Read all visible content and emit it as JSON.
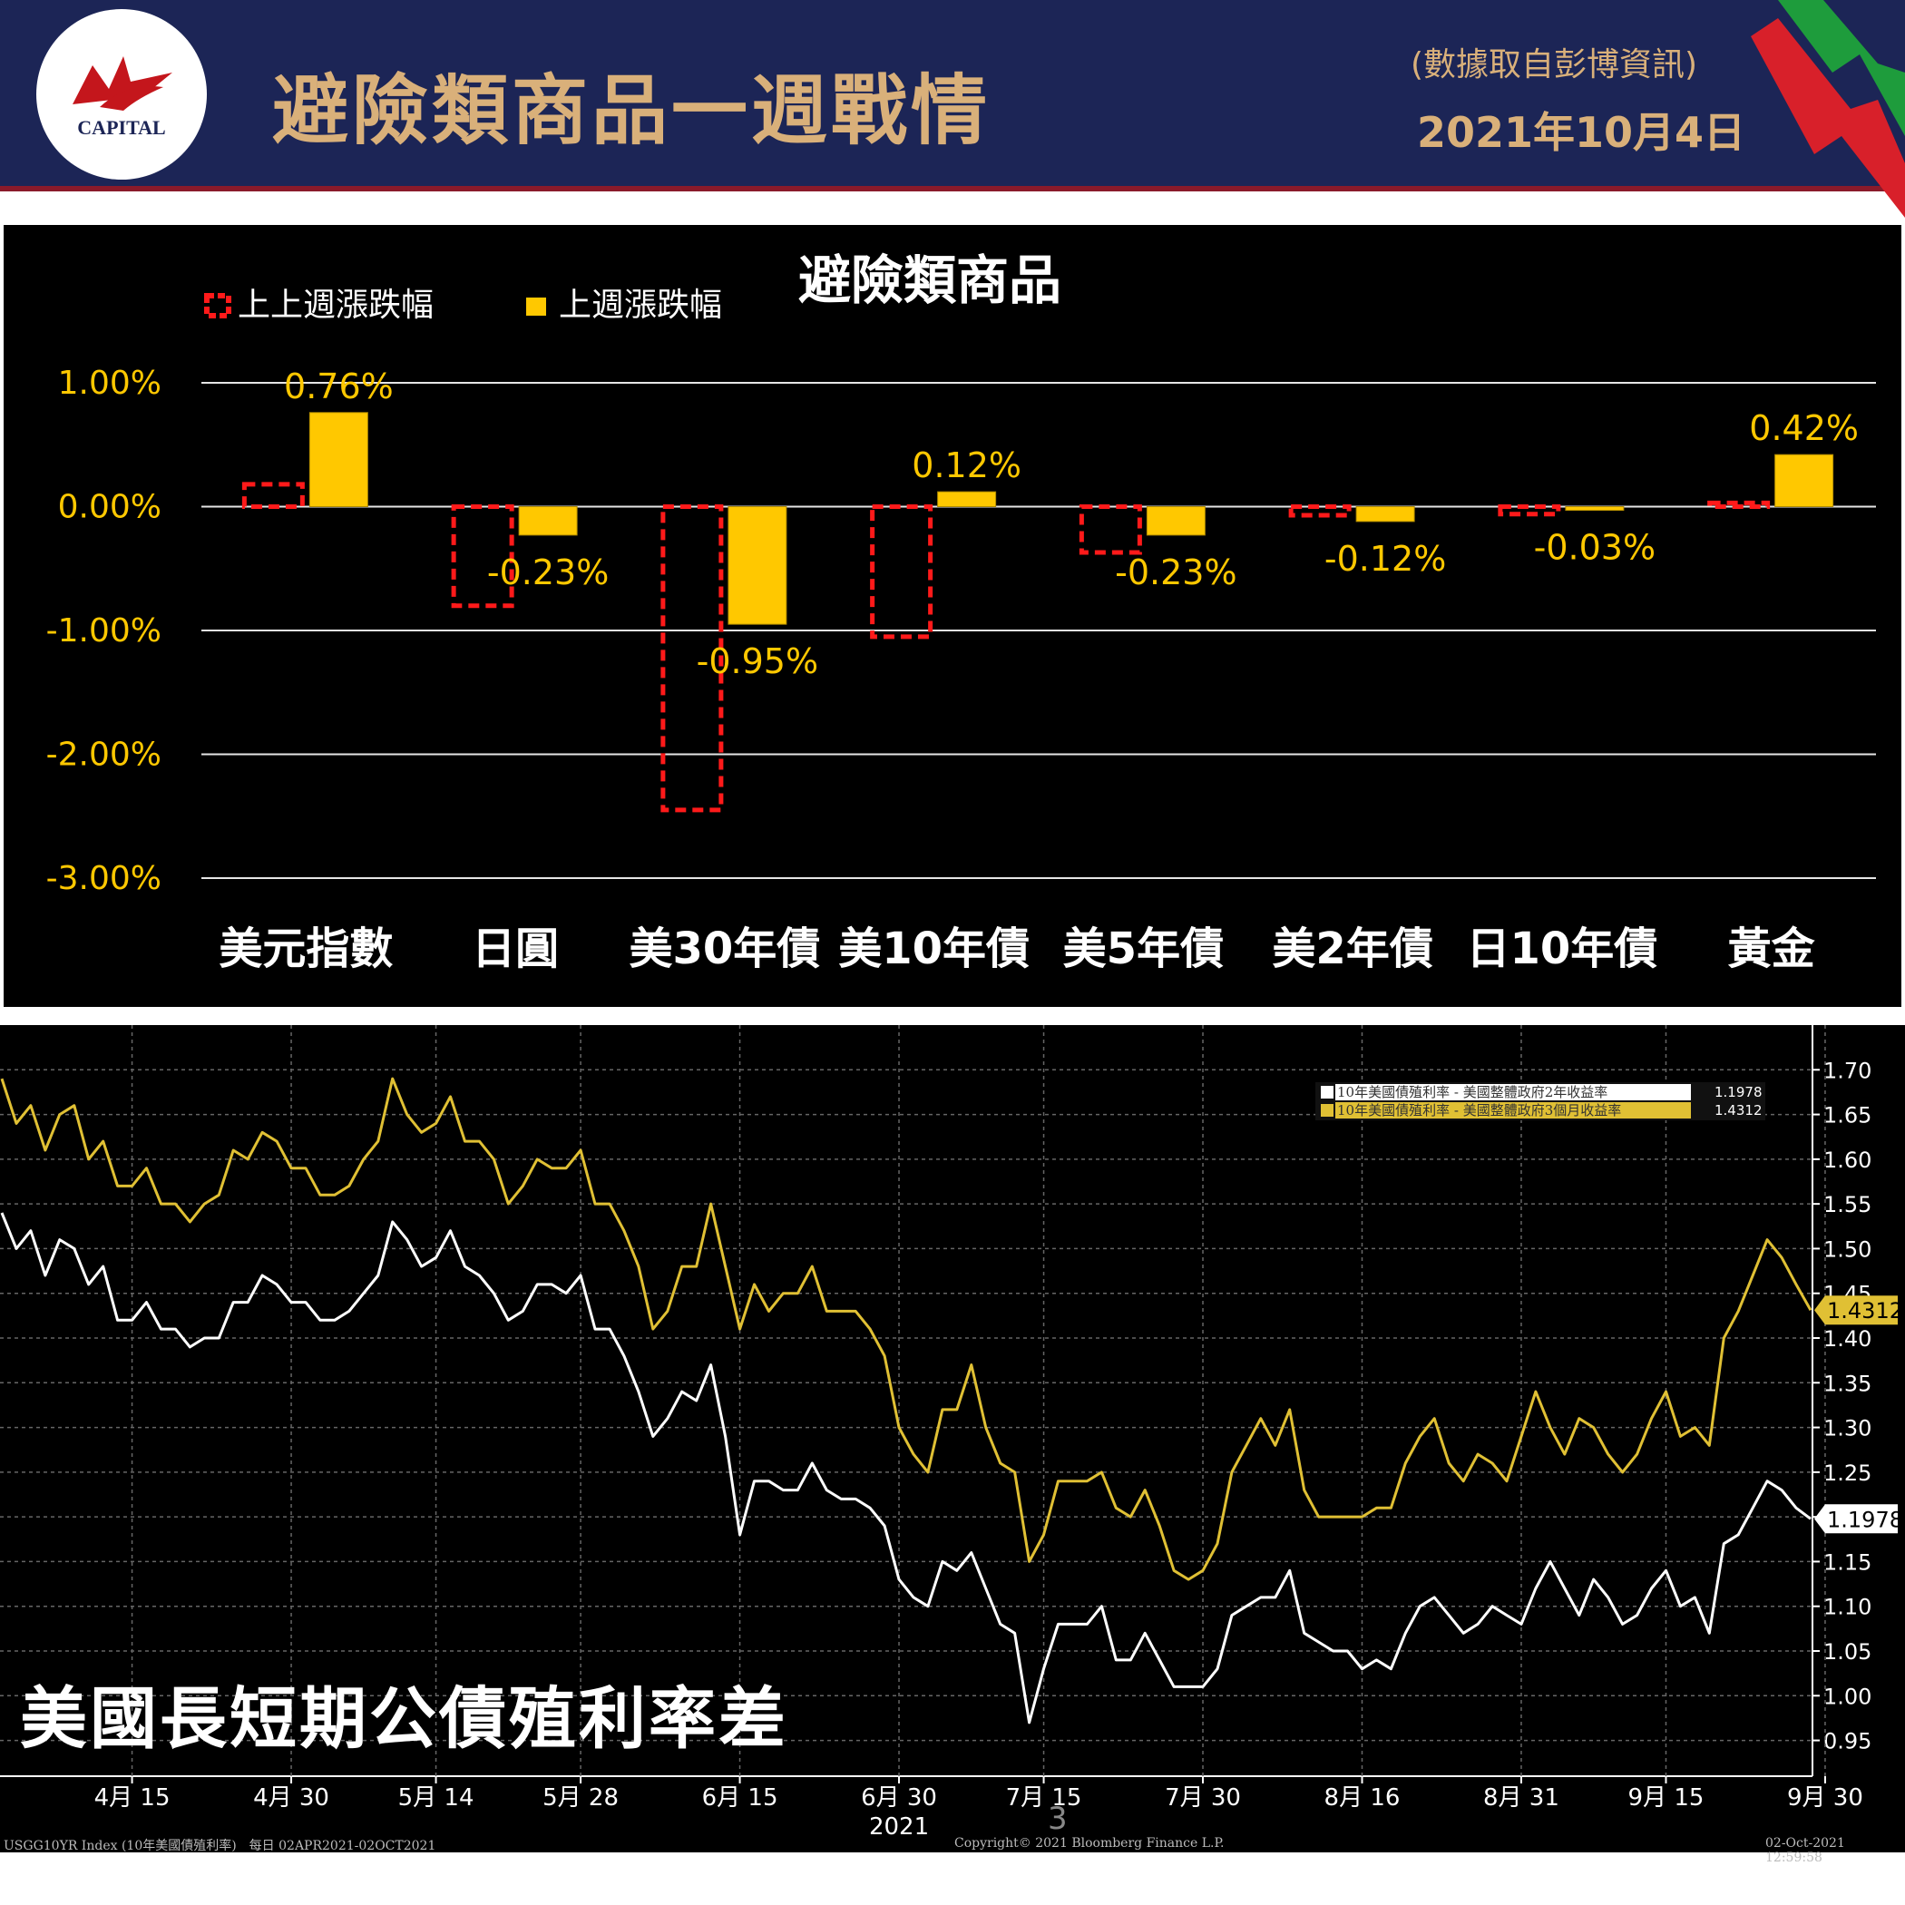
{
  "header": {
    "logo_text": "CAPITAL",
    "title": "避險類商品一週戰情",
    "source": "(數據取自彭博資訊)",
    "date": "2021年10月4日"
  },
  "colors": {
    "header_bg": "#1c2556",
    "accent_gold": "#d9b07a",
    "bar_yellow": "#ffc800",
    "prev_week_red": "#ff1a1a",
    "line_white": "#ffffff",
    "line_yellow": "#e0c034"
  },
  "chart_data": [
    {
      "type": "bar",
      "title": "避險類商品",
      "categories": [
        "美元指數",
        "日圓",
        "美30年債",
        "美10年債",
        "美5年債",
        "美2年債",
        "日10年債",
        "黃金"
      ],
      "series": [
        {
          "name": "上上週漲跌幅",
          "style": "dashed-outline",
          "values": [
            0.18,
            -0.8,
            -2.45,
            -1.05,
            -0.37,
            -0.07,
            -0.06,
            0.03
          ]
        },
        {
          "name": "上週漲跌幅",
          "style": "solid",
          "values": [
            0.76,
            -0.23,
            -0.95,
            0.12,
            -0.23,
            -0.12,
            -0.03,
            0.42
          ]
        }
      ],
      "data_labels": [
        "0.76%",
        "-0.23%",
        "-0.95%",
        "0.12%",
        "-0.23%",
        "-0.12%",
        "-0.03%",
        "0.42%"
      ],
      "y_ticks": [
        1.0,
        0.0,
        -1.0,
        -2.0,
        -3.0
      ],
      "y_tick_labels": [
        "1.00%",
        "0.00%",
        "-1.00%",
        "-2.00%",
        "-3.00%"
      ],
      "ylim": [
        -3.0,
        1.0
      ],
      "legend_position": "top-left",
      "grid": true
    },
    {
      "type": "line",
      "title": "美國長短期公債殖利率差",
      "series": [
        {
          "name": "10年美國債殖利率 - 美國整體政府2年收益率",
          "last_value": "1.1978",
          "color": "white",
          "values": [
            1.54,
            1.5,
            1.52,
            1.47,
            1.51,
            1.5,
            1.46,
            1.48,
            1.42,
            1.42,
            1.44,
            1.41,
            1.41,
            1.39,
            1.4,
            1.4,
            1.44,
            1.44,
            1.47,
            1.46,
            1.44,
            1.44,
            1.42,
            1.42,
            1.43,
            1.45,
            1.47,
            1.53,
            1.51,
            1.48,
            1.49,
            1.52,
            1.48,
            1.47,
            1.45,
            1.42,
            1.43,
            1.46,
            1.46,
            1.45,
            1.47,
            1.41,
            1.41,
            1.38,
            1.34,
            1.29,
            1.31,
            1.34,
            1.33,
            1.37,
            1.29,
            1.18,
            1.24,
            1.24,
            1.23,
            1.23,
            1.26,
            1.23,
            1.22,
            1.22,
            1.21,
            1.19,
            1.13,
            1.11,
            1.1,
            1.15,
            1.14,
            1.16,
            1.12,
            1.08,
            1.07,
            0.97,
            1.03,
            1.08,
            1.08,
            1.08,
            1.1,
            1.04,
            1.04,
            1.07,
            1.04,
            1.01,
            1.01,
            1.01,
            1.03,
            1.09,
            1.1,
            1.11,
            1.11,
            1.14,
            1.07,
            1.06,
            1.05,
            1.05,
            1.03,
            1.04,
            1.03,
            1.07,
            1.1,
            1.11,
            1.09,
            1.07,
            1.08,
            1.1,
            1.09,
            1.08,
            1.12,
            1.15,
            1.12,
            1.09,
            1.13,
            1.11,
            1.08,
            1.09,
            1.12,
            1.14,
            1.1,
            1.11,
            1.07,
            1.17,
            1.18,
            1.21,
            1.24,
            1.23,
            1.21,
            1.1978
          ]
        },
        {
          "name": "10年美國債殖利率 - 美國整體政府3個月收益率",
          "last_value": "1.4312",
          "color": "yellow",
          "values": [
            1.69,
            1.64,
            1.66,
            1.61,
            1.65,
            1.66,
            1.6,
            1.62,
            1.57,
            1.57,
            1.59,
            1.55,
            1.55,
            1.53,
            1.55,
            1.56,
            1.61,
            1.6,
            1.63,
            1.62,
            1.59,
            1.59,
            1.56,
            1.56,
            1.57,
            1.6,
            1.62,
            1.69,
            1.65,
            1.63,
            1.64,
            1.67,
            1.62,
            1.62,
            1.6,
            1.55,
            1.57,
            1.6,
            1.59,
            1.59,
            1.61,
            1.55,
            1.55,
            1.52,
            1.48,
            1.41,
            1.43,
            1.48,
            1.48,
            1.55,
            1.48,
            1.41,
            1.46,
            1.43,
            1.45,
            1.45,
            1.48,
            1.43,
            1.43,
            1.43,
            1.41,
            1.38,
            1.3,
            1.27,
            1.25,
            1.32,
            1.32,
            1.37,
            1.3,
            1.26,
            1.25,
            1.15,
            1.18,
            1.24,
            1.24,
            1.24,
            1.25,
            1.21,
            1.2,
            1.23,
            1.19,
            1.14,
            1.13,
            1.14,
            1.17,
            1.25,
            1.28,
            1.31,
            1.28,
            1.32,
            1.23,
            1.2,
            1.2,
            1.2,
            1.2,
            1.21,
            1.21,
            1.26,
            1.29,
            1.31,
            1.26,
            1.24,
            1.27,
            1.26,
            1.24,
            1.29,
            1.34,
            1.3,
            1.27,
            1.31,
            1.3,
            1.27,
            1.25,
            1.27,
            1.31,
            1.34,
            1.29,
            1.3,
            1.28,
            1.4,
            1.43,
            1.47,
            1.51,
            1.49,
            1.46,
            1.4312
          ]
        }
      ],
      "y_ticks": [
        1.7,
        1.65,
        1.6,
        1.55,
        1.5,
        1.45,
        1.4,
        1.35,
        1.3,
        1.25,
        1.2,
        1.15,
        1.1,
        1.05,
        1.0,
        0.95
      ],
      "y_tick_labels": [
        "1.70",
        "1.65",
        "1.60",
        "1.55",
        "1.50",
        "1.45",
        "1.40",
        "1.35",
        "1.30",
        "1.25",
        "1.20",
        "1.15",
        "1.10",
        "1.05",
        "1.00",
        "0.95"
      ],
      "ylim": [
        0.91,
        1.75
      ],
      "x_tick_labels": [
        "4月 15",
        "4月 30",
        "5月 14",
        "5月 28",
        "6月 15",
        "6月 30",
        "7月 15",
        "7月 30",
        "8月 16",
        "8月 31",
        "9月 15",
        "9月 30"
      ],
      "x_tick_index": [
        9,
        20,
        30,
        40,
        51,
        62,
        72,
        83,
        94,
        105,
        115,
        126
      ],
      "year_label": "2021",
      "legend_position": "top-right",
      "grid": true
    }
  ],
  "footer": {
    "page_number": "3",
    "left": "USGG10YR Index (10年美國債殖利率)　每日 02APR2021-02OCT2021",
    "middle": "Copyright© 2021 Bloomberg Finance L.P.",
    "right": "02-Oct-2021 12:59:58"
  }
}
